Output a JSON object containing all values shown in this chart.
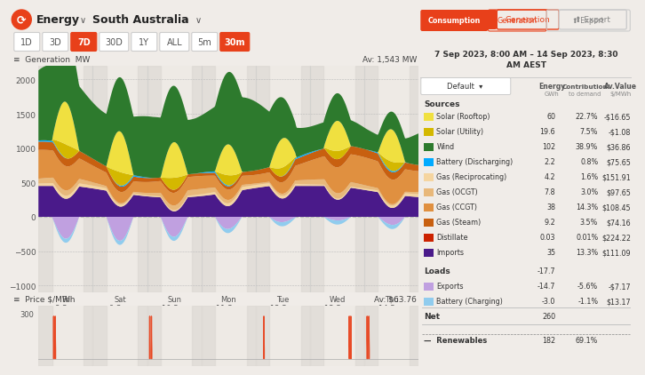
{
  "bg_color": "#f0ece8",
  "chart_bg": "#eeebe6",
  "generation_avg": "Av: 1,543 MW",
  "price_avg": "Av: $63.76",
  "x_ticks": [
    "Fri\n8 Sep",
    "Sat\n9 Sep",
    "Sun\n10 Sep",
    "Mon\n11 Sep",
    "Tue\n12 Sep",
    "Wed\n13 Sep",
    "Thu\n14 Sep"
  ],
  "ylim_gen": [
    -1100,
    2200
  ],
  "y_ticks_gen": [
    -1000,
    -500,
    0,
    500,
    1000,
    1500,
    2000
  ],
  "colors": {
    "solar_rooftop": "#f0e040",
    "solar_utility": "#d4b800",
    "wind": "#2d7a2d",
    "battery_discharge": "#00aaff",
    "gas_recip": "#f5d5a0",
    "gas_ocgt": "#e8b87a",
    "gas_ccgt": "#e09040",
    "gas_steam": "#c86010",
    "distillate": "#cc2200",
    "imports": "#4a1a8a",
    "exports": "#c0a0e0",
    "battery_charge": "#90ccee"
  },
  "table_items": [
    {
      "label": "Solar (Rooftop)",
      "color": "#f0e040",
      "energy": "60",
      "contrib": "22.7%",
      "avval": "-$16.65"
    },
    {
      "label": "Solar (Utility)",
      "color": "#d4b800",
      "energy": "19.6",
      "contrib": "7.5%",
      "avval": "-$1.08"
    },
    {
      "label": "Wind",
      "color": "#2d7a2d",
      "energy": "102",
      "contrib": "38.9%",
      "avval": "$36.86"
    },
    {
      "label": "Battery (Discharging)",
      "color": "#00aaff",
      "energy": "2.2",
      "contrib": "0.8%",
      "avval": "$75.65"
    },
    {
      "label": "Gas (Reciprocating)",
      "color": "#f5d5a0",
      "energy": "4.2",
      "contrib": "1.6%",
      "avval": "$151.91"
    },
    {
      "label": "Gas (OCGT)",
      "color": "#e8b87a",
      "energy": "7.8",
      "contrib": "3.0%",
      "avval": "$97.65"
    },
    {
      "label": "Gas (CCGT)",
      "color": "#e09040",
      "energy": "38",
      "contrib": "14.3%",
      "avval": "$108.45"
    },
    {
      "label": "Gas (Steam)",
      "color": "#c86010",
      "energy": "9.2",
      "contrib": "3.5%",
      "avval": "$74.16"
    },
    {
      "label": "Distillate",
      "color": "#cc2200",
      "energy": "0.03",
      "contrib": "0.01%",
      "avval": "$224.22"
    },
    {
      "label": "Imports",
      "color": "#4a1a8a",
      "energy": "35",
      "contrib": "13.3%",
      "avval": "$111.09"
    }
  ],
  "loads_items": [
    {
      "label": "Exports",
      "color": "#c0a0e0",
      "energy": "-14.7",
      "contrib": "-5.6%",
      "avval": "-$7.17"
    },
    {
      "label": "Battery (Charging)",
      "color": "#90ccee",
      "energy": "-3.0",
      "contrib": "-1.1%",
      "avval": "$13.17"
    }
  ],
  "net_energy": "260",
  "renewables_energy": "182",
  "renewables_contrib": "69.1%"
}
